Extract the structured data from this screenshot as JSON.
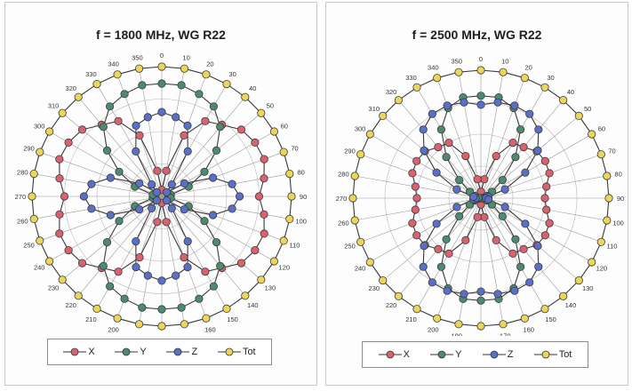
{
  "chart_data": [
    {
      "type": "polar-line",
      "title": "f = 1800 MHz, WG R22",
      "angles": [
        0,
        10,
        20,
        30,
        40,
        50,
        60,
        70,
        80,
        90,
        100,
        110,
        120,
        130,
        140,
        150,
        160,
        170,
        180,
        190,
        200,
        210,
        220,
        230,
        240,
        250,
        260,
        270,
        280,
        290,
        300,
        310,
        320,
        330,
        340,
        350
      ],
      "angle_labels": [
        "0",
        "10",
        "20",
        "30",
        "40",
        "50",
        "60",
        "70",
        "80",
        "90",
        "100",
        "110",
        "120",
        "130",
        "140",
        "150",
        "160",
        "170",
        "180",
        "190",
        "200",
        "210",
        "220",
        "230",
        "240",
        "250",
        "260",
        "270",
        "280",
        "290",
        "300",
        "310",
        "320",
        "330",
        "340",
        "350"
      ],
      "rlim": [
        0,
        1
      ],
      "grid": true,
      "legend_position": "bottom",
      "series": [
        {
          "name": "X",
          "color": "#d9626e",
          "values": [
            0.05,
            0.2,
            0.5,
            0.67,
            0.72,
            0.8,
            0.83,
            0.84,
            0.8,
            0.75,
            0.8,
            0.84,
            0.83,
            0.8,
            0.72,
            0.67,
            0.5,
            0.2,
            0.05,
            0.2,
            0.5,
            0.67,
            0.72,
            0.8,
            0.83,
            0.84,
            0.8,
            0.75,
            0.8,
            0.84,
            0.83,
            0.8,
            0.72,
            0.67,
            0.5,
            0.2
          ]
        },
        {
          "name": "Y",
          "color": "#4e8a70",
          "values": [
            0.87,
            0.87,
            0.84,
            0.8,
            0.7,
            0.55,
            0.38,
            0.22,
            0.07,
            0.05,
            0.07,
            0.22,
            0.38,
            0.55,
            0.7,
            0.8,
            0.84,
            0.87,
            0.87,
            0.87,
            0.84,
            0.8,
            0.7,
            0.55,
            0.38,
            0.22,
            0.07,
            0.05,
            0.07,
            0.22,
            0.38,
            0.55,
            0.7,
            0.8,
            0.84,
            0.87
          ]
        },
        {
          "name": "Z",
          "color": "#5b6fc7",
          "values": [
            0.65,
            0.62,
            0.58,
            0.4,
            0.12,
            0.05,
            0.2,
            0.42,
            0.55,
            0.6,
            0.55,
            0.42,
            0.2,
            0.05,
            0.12,
            0.4,
            0.58,
            0.62,
            0.65,
            0.62,
            0.58,
            0.4,
            0.12,
            0.05,
            0.2,
            0.42,
            0.55,
            0.6,
            0.55,
            0.42,
            0.2,
            0.05,
            0.12,
            0.4,
            0.58,
            0.62
          ]
        },
        {
          "name": "Tot",
          "color": "#ecd65a",
          "values": [
            1,
            1,
            1,
            1,
            1,
            1,
            1,
            1,
            1,
            1,
            1,
            1,
            1,
            1,
            1,
            1,
            1,
            1,
            1,
            1,
            1,
            1,
            1,
            1,
            1,
            1,
            1,
            1,
            1,
            1,
            1,
            1,
            1,
            1,
            1,
            1
          ]
        }
      ]
    },
    {
      "type": "polar-line",
      "title": "f = 2500 MHz, WG R22",
      "angles": [
        0,
        10,
        20,
        30,
        40,
        50,
        60,
        70,
        80,
        90,
        100,
        110,
        120,
        130,
        140,
        150,
        160,
        170,
        180,
        190,
        200,
        210,
        220,
        230,
        240,
        250,
        260,
        270,
        280,
        290,
        300,
        310,
        320,
        330,
        340,
        350
      ],
      "angle_labels": [
        "0",
        "10",
        "20",
        "30",
        "40",
        "50",
        "60",
        "70",
        "80",
        "90",
        "100",
        "110",
        "120",
        "130",
        "140",
        "150",
        "160",
        "170",
        "180",
        "190",
        "200",
        "210",
        "220",
        "230",
        "240",
        "250",
        "260",
        "270",
        "280",
        "290",
        "300",
        "310",
        "320",
        "330",
        "340",
        "350"
      ],
      "rlim": [
        0,
        1
      ],
      "grid": true,
      "legend_position": "bottom",
      "series": [
        {
          "name": "X",
          "color": "#d9626e",
          "values": [
            0.05,
            0.15,
            0.35,
            0.5,
            0.52,
            0.57,
            0.58,
            0.57,
            0.52,
            0.5,
            0.52,
            0.57,
            0.58,
            0.57,
            0.52,
            0.5,
            0.35,
            0.15,
            0.05,
            0.15,
            0.35,
            0.5,
            0.52,
            0.57,
            0.58,
            0.57,
            0.52,
            0.5,
            0.52,
            0.57,
            0.58,
            0.57,
            0.52,
            0.5,
            0.35,
            0.15
          ]
        },
        {
          "name": "Y",
          "color": "#4e8a70",
          "values": [
            0.8,
            0.8,
            0.75,
            0.62,
            0.42,
            0.22,
            0.1,
            0.05,
            0.02,
            0.05,
            0.02,
            0.05,
            0.1,
            0.22,
            0.42,
            0.62,
            0.75,
            0.8,
            0.8,
            0.8,
            0.75,
            0.62,
            0.42,
            0.22,
            0.1,
            0.05,
            0.02,
            0.05,
            0.02,
            0.05,
            0.1,
            0.22,
            0.42,
            0.62,
            0.75,
            0.8
          ]
        },
        {
          "name": "Z",
          "color": "#5b6fc7",
          "values": [
            0.73,
            0.76,
            0.77,
            0.76,
            0.7,
            0.58,
            0.4,
            0.2,
            0.06,
            0.04,
            0.06,
            0.2,
            0.4,
            0.58,
            0.7,
            0.76,
            0.77,
            0.76,
            0.73,
            0.76,
            0.77,
            0.76,
            0.7,
            0.58,
            0.4,
            0.2,
            0.06,
            0.04,
            0.06,
            0.2,
            0.4,
            0.58,
            0.7,
            0.76,
            0.77,
            0.76
          ]
        },
        {
          "name": "Tot",
          "color": "#ecd65a",
          "values": [
            1,
            1,
            1,
            1,
            1,
            1,
            1,
            1,
            1,
            1,
            1,
            1,
            1,
            1,
            1,
            1,
            1,
            1,
            1,
            1,
            1,
            1,
            1,
            1,
            1,
            1,
            1,
            1,
            1,
            1,
            1,
            1,
            1,
            1,
            1,
            1
          ]
        }
      ]
    }
  ]
}
